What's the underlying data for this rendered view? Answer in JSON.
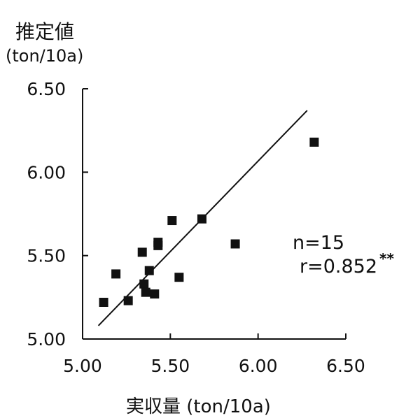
{
  "chart_data": {
    "type": "scatter",
    "ylabel": "推定値",
    "ylabel_unit": "(ton/10a)",
    "xlabel": "実収量  (ton/10a)",
    "xlim": [
      5.0,
      6.5
    ],
    "ylim": [
      5.0,
      6.5
    ],
    "xticks": [
      "5.00",
      "5.50",
      "6.00",
      "6.50"
    ],
    "yticks": [
      "5.00",
      "5.50",
      "6.00",
      "6.50"
    ],
    "points": [
      {
        "x": 5.12,
        "y": 5.22
      },
      {
        "x": 5.19,
        "y": 5.39
      },
      {
        "x": 5.26,
        "y": 5.23
      },
      {
        "x": 5.34,
        "y": 5.52
      },
      {
        "x": 5.35,
        "y": 5.33
      },
      {
        "x": 5.36,
        "y": 5.28
      },
      {
        "x": 5.38,
        "y": 5.41
      },
      {
        "x": 5.41,
        "y": 5.27
      },
      {
        "x": 5.43,
        "y": 5.56
      },
      {
        "x": 5.43,
        "y": 5.58
      },
      {
        "x": 5.51,
        "y": 5.71
      },
      {
        "x": 5.55,
        "y": 5.37
      },
      {
        "x": 5.68,
        "y": 5.72
      },
      {
        "x": 5.87,
        "y": 5.57
      },
      {
        "x": 6.32,
        "y": 6.18
      }
    ],
    "regression_line": {
      "x": [
        5.09,
        6.28
      ],
      "y": [
        5.08,
        6.37
      ]
    },
    "n_label": "n=15",
    "r_label": "r=0.852",
    "significance": "**",
    "grid": false,
    "legend": "none"
  }
}
